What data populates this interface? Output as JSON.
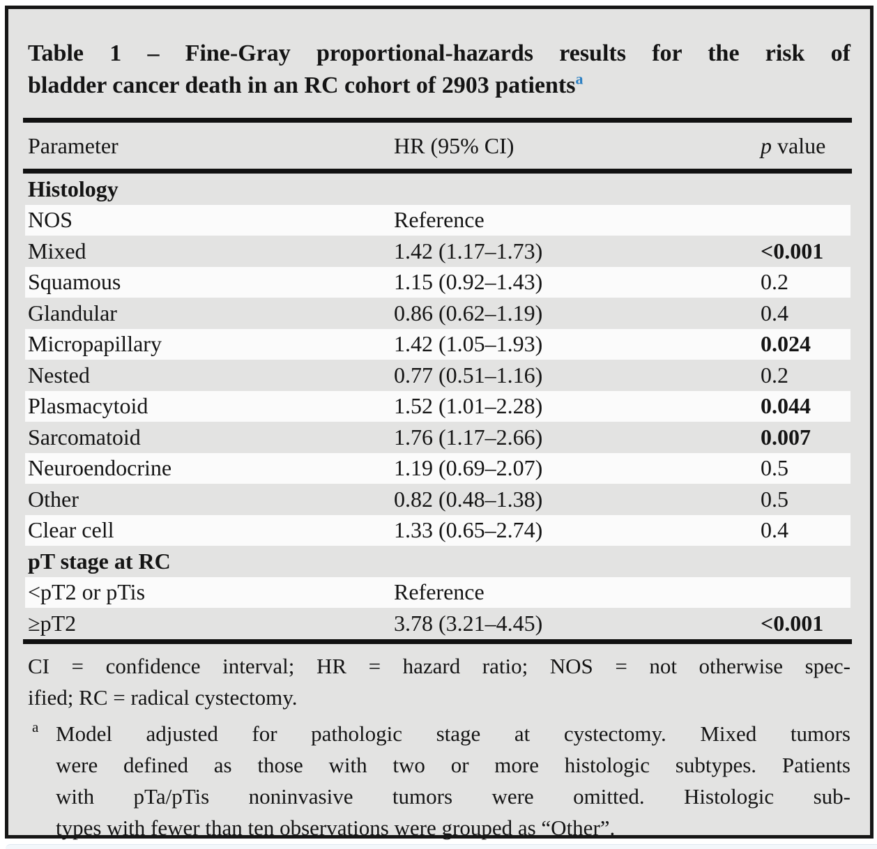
{
  "table": {
    "title": {
      "line1": "Table 1 – Fine-Gray proportional-hazards results for the risk of",
      "line2": "bladder cancer death in an RC cohort of 2903 patients",
      "superscript": "a"
    },
    "columns": {
      "parameter": "Parameter",
      "hr": "HR (95% CI)",
      "p_italic": "p",
      "p_rest": " value"
    },
    "sections": [
      {
        "header": "Histology",
        "rows": [
          {
            "parameter": "NOS",
            "hr": "Reference",
            "p": ""
          },
          {
            "parameter": "Mixed",
            "hr": "1.42 (1.17–1.73)",
            "p": "<0.001"
          },
          {
            "parameter": "Squamous",
            "hr": "1.15 (0.92–1.43)",
            "p": "0.2"
          },
          {
            "parameter": "Glandular",
            "hr": "0.86 (0.62–1.19)",
            "p": "0.4"
          },
          {
            "parameter": "Micropapillary",
            "hr": "1.42 (1.05–1.93)",
            "p": "0.024"
          },
          {
            "parameter": "Nested",
            "hr": "0.77 (0.51–1.16)",
            "p": "0.2"
          },
          {
            "parameter": "Plasmacytoid",
            "hr": "1.52 (1.01–2.28)",
            "p": "0.044"
          },
          {
            "parameter": "Sarcomatoid",
            "hr": "1.76 (1.17–2.66)",
            "p": "0.007"
          },
          {
            "parameter": "Neuroendocrine",
            "hr": "1.19 (0.69–2.07)",
            "p": "0.5"
          },
          {
            "parameter": "Other",
            "hr": "0.82 (0.48–1.38)",
            "p": "0.5"
          },
          {
            "parameter": "Clear cell",
            "hr": "1.33 (0.65–2.74)",
            "p": "0.4"
          }
        ]
      },
      {
        "header": "pT stage at RC",
        "rows": [
          {
            "parameter": "<pT2 or pTis",
            "hr": "Reference",
            "p": ""
          },
          {
            "parameter": "≥pT2",
            "hr": "3.78 (3.21–4.45)",
            "p": "<0.001"
          }
        ]
      }
    ],
    "abbreviations": {
      "line1": "CI = confidence interval; HR = hazard ratio; NOS = not otherwise spec-",
      "line2": "ified; RC = radical cystectomy."
    },
    "footnote": {
      "marker": "a",
      "line1": "Model adjusted for pathologic stage at cystectomy. Mixed tumors",
      "line2": "were defined as those with two or more histologic subtypes. Patients",
      "line3": "with pTa/pTis noninvasive tumors were omitted. Histologic sub-",
      "line4": "types with fewer than ten observations were grouped as “Other”."
    }
  },
  "colors": {
    "table_background": "#e3e3e2",
    "row_stripe": "#fbfbfb",
    "frame_border": "#161616",
    "rule": "#111111",
    "text": "#141414",
    "title_superscript": "#2b7fc3",
    "bottom_strip": "#f3f7fb"
  }
}
